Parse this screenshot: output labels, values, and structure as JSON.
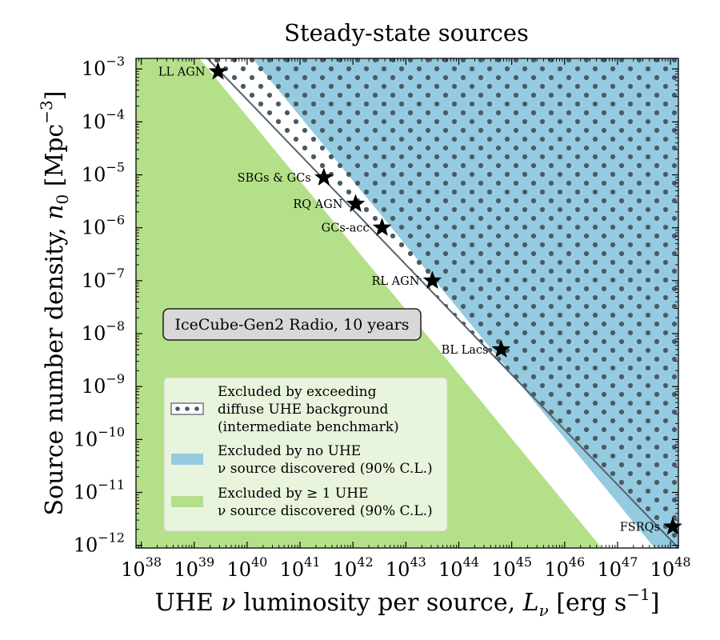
{
  "chart_data": {
    "type": "area",
    "title": "Steady-state sources",
    "xlabel_parts": [
      "UHE ",
      "ν",
      " luminosity per source, ",
      "L",
      "ν",
      " [erg s",
      "−1",
      "]"
    ],
    "ylabel_parts": [
      "Source number density, ",
      "n",
      "0",
      " [Mpc",
      "−3",
      "]"
    ],
    "x_scale": "log",
    "y_scale": "log",
    "xlim_log10": [
      37.9,
      48.15
    ],
    "ylim_log10": [
      -12.05,
      -2.8
    ],
    "x_ticks": [
      {
        "base": "10",
        "exp": "38"
      },
      {
        "base": "10",
        "exp": "39"
      },
      {
        "base": "10",
        "exp": "40"
      },
      {
        "base": "10",
        "exp": "41"
      },
      {
        "base": "10",
        "exp": "42"
      },
      {
        "base": "10",
        "exp": "43"
      },
      {
        "base": "10",
        "exp": "44"
      },
      {
        "base": "10",
        "exp": "45"
      },
      {
        "base": "10",
        "exp": "46"
      },
      {
        "base": "10",
        "exp": "47"
      },
      {
        "base": "10",
        "exp": "48"
      }
    ],
    "y_ticks": [
      {
        "base": "10",
        "exp": "−3"
      },
      {
        "base": "10",
        "exp": "−4"
      },
      {
        "base": "10",
        "exp": "−5"
      },
      {
        "base": "10",
        "exp": "−6"
      },
      {
        "base": "10",
        "exp": "−7"
      },
      {
        "base": "10",
        "exp": "−8"
      },
      {
        "base": "10",
        "exp": "−9"
      },
      {
        "base": "10",
        "exp": "−10"
      },
      {
        "base": "10",
        "exp": "−11"
      },
      {
        "base": "10",
        "exp": "−12"
      }
    ],
    "regions": {
      "green_boundary_log": [
        [
          39.1,
          -2.8
        ],
        [
          46.7,
          -12.05
        ]
      ],
      "blue_boundary_log": [
        [
          40.1,
          -2.8
        ],
        [
          47.7,
          -12.05
        ]
      ],
      "dotted_boundary_log": [
        [
          39.75,
          -2.8
        ],
        [
          42.7,
          -6.4
        ]
      ]
    },
    "diffuse_line_log": [
      [
        39.25,
        -2.8
      ],
      [
        48.15,
        -12.05
      ]
    ],
    "sources": [
      {
        "name": "LL AGN",
        "logL": 39.45,
        "logn": -3.05
      },
      {
        "name": "SBGs & GCs",
        "logL": 41.45,
        "logn": -5.05
      },
      {
        "name": "RQ AGN",
        "logL": 42.05,
        "logn": -5.55
      },
      {
        "name": "GCs-acc",
        "logL": 42.55,
        "logn": -6.0
      },
      {
        "name": "RL AGN",
        "logL": 43.5,
        "logn": -7.0
      },
      {
        "name": "BL Lacs",
        "logL": 44.8,
        "logn": -8.3
      },
      {
        "name": "FSRQs",
        "logL": 48.2,
        "logn": -11.65
      }
    ],
    "annotation": "IceCube-Gen2 Radio, 10 years",
    "legend": [
      {
        "kind": "dotted",
        "lines": [
          "Excluded by exceeding",
          "diffuse UHE background",
          "(intermediate benchmark)"
        ]
      },
      {
        "kind": "blue",
        "lines": [
          "Excluded by no UHE",
          "ν source discovered (90% C.L.)"
        ]
      },
      {
        "kind": "green",
        "lines": [
          "Excluded by ≥ 1 UHE",
          "ν source discovered (90% C.L.)"
        ]
      }
    ],
    "colors": {
      "green": "#b5e08a",
      "blue": "#95cbe0",
      "dots": "#4a5a63",
      "line": "#56636c"
    }
  }
}
